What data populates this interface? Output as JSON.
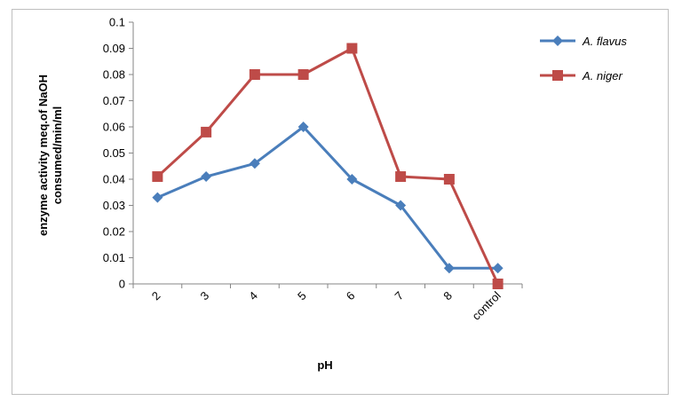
{
  "chart_data": {
    "type": "line",
    "title": "",
    "xlabel": "pH",
    "ylabel_lines": [
      "enzyme activity  meq.of NaOH",
      "consumed/min/ml"
    ],
    "categories": [
      "2",
      "3",
      "4",
      "5",
      "6",
      "7",
      "8",
      "control"
    ],
    "ylim": [
      0,
      0.1
    ],
    "yticks": [
      "0",
      "0.01",
      "0.02",
      "0.03",
      "0.04",
      "0.05",
      "0.06",
      "0.07",
      "0.08",
      "0.09",
      "0.1"
    ],
    "grid": false,
    "legend": "right",
    "series": [
      {
        "name": "A. flavus",
        "color": "#4a7ebb",
        "marker": "diamond",
        "values": [
          0.033,
          0.041,
          0.046,
          0.06,
          0.04,
          0.03,
          0.006,
          0.006
        ]
      },
      {
        "name": "A. niger",
        "color": "#be4b48",
        "marker": "square",
        "values": [
          0.041,
          0.058,
          0.08,
          0.08,
          0.09,
          0.041,
          0.04,
          0.0
        ]
      }
    ]
  }
}
